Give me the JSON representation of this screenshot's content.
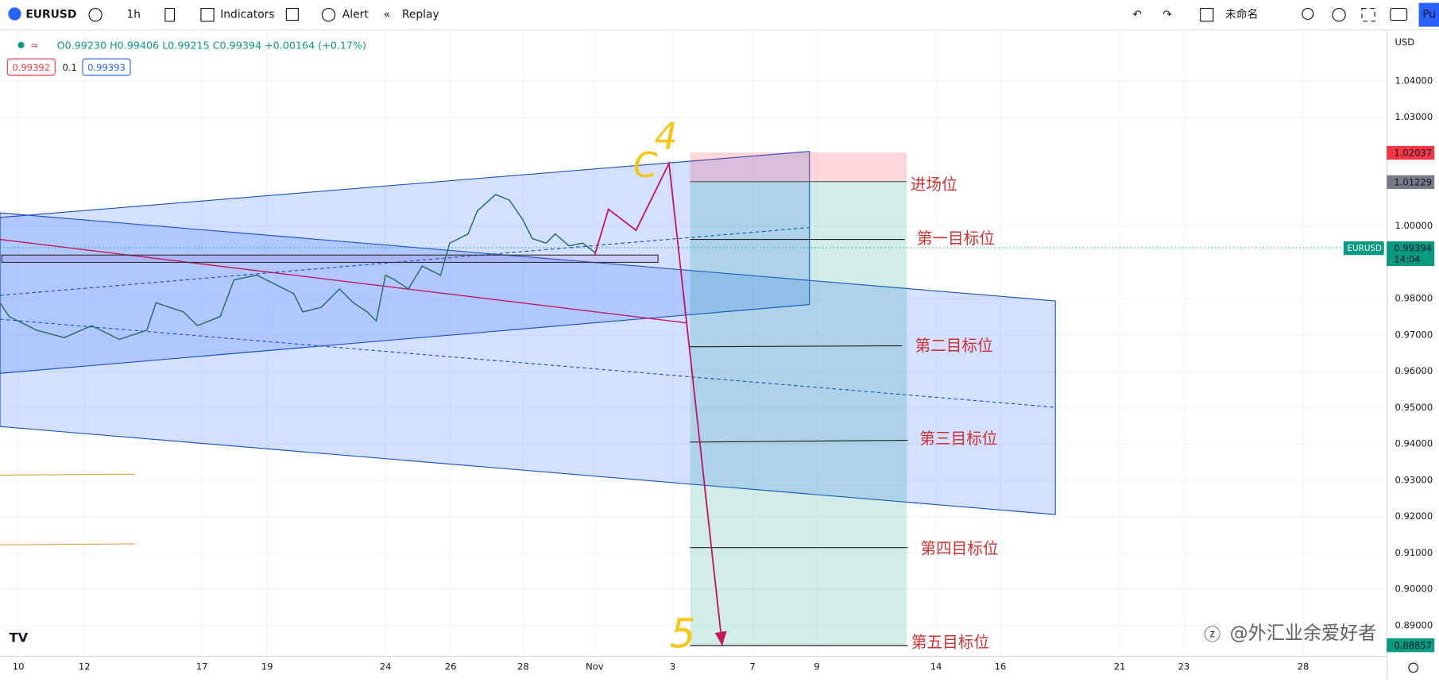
{
  "toolbar": {
    "symbol": "EURUSD",
    "interval": "1h",
    "indicators": "Indicators",
    "alert": "Alert",
    "replay": "Replay",
    "layout_name": "未命名",
    "publish": "Pu"
  },
  "legend": {
    "ohlc": "O0.99230 H0.99406 L0.99215 C0.99394 +0.00164 (+0.17%)",
    "bid": "0.99392",
    "spread": "0.1",
    "ask": "0.99393"
  },
  "price_axis": {
    "currency": "USD",
    "labels": [
      "1.04000",
      "1.03000",
      "1.00000",
      "0.98000",
      "0.97000",
      "0.96000",
      "0.95000",
      "0.94000",
      "0.93000",
      "0.92000",
      "0.91000",
      "0.90000",
      "0.89000"
    ],
    "tags": {
      "stop": "1.02037",
      "entry": "1.01229",
      "symbol": "EURUSD",
      "last": "0.99394",
      "countdown": "14:04",
      "target": "0.88857"
    }
  },
  "time_axis": {
    "labels": [
      "10",
      "12",
      "17",
      "19",
      "24",
      "26",
      "28",
      "Nov",
      "3",
      "7",
      "9",
      "14",
      "16",
      "21",
      "23",
      "28"
    ]
  },
  "annotations": {
    "entry": "进场位",
    "target1": "第一目标位",
    "target2": "第二目标位",
    "target3": "第三目标位",
    "target4": "第四目标位",
    "target5": "第五目标位",
    "wave_c": "C",
    "wave_4": "4",
    "wave_5": "5"
  },
  "watermark": "@外汇业余爱好者"
}
